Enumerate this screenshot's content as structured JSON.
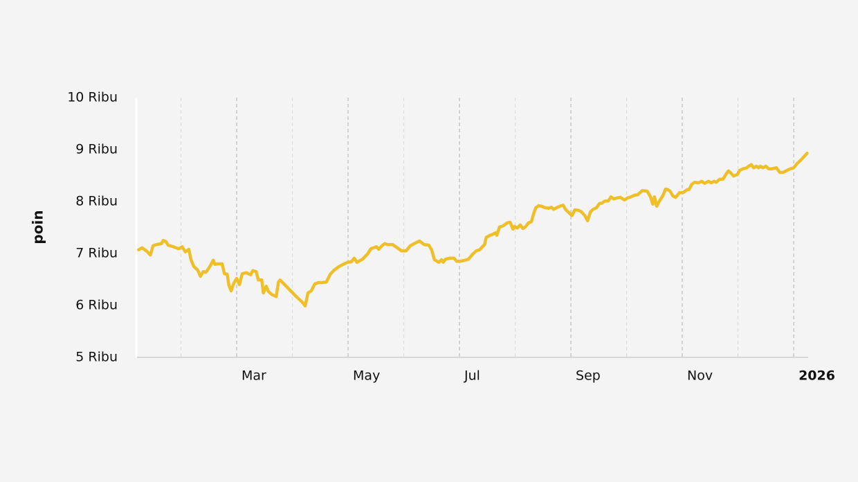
{
  "chart_data": {
    "type": "line",
    "y_label": "poin",
    "color": "#efbf2a",
    "x": [
      0.24,
      0.3,
      0.39,
      0.45,
      0.5,
      0.56,
      0.65,
      0.68,
      0.73,
      0.77,
      0.86,
      0.96,
      1.02,
      1.08,
      1.14,
      1.18,
      1.23,
      1.3,
      1.35,
      1.4,
      1.45,
      1.52,
      1.58,
      1.61,
      1.66,
      1.74,
      1.78,
      1.83,
      1.86,
      1.9,
      1.95,
      2.0,
      2.05,
      2.1,
      2.17,
      2.25,
      2.29,
      2.35,
      2.39,
      2.45,
      2.48,
      2.53,
      2.57,
      2.63,
      2.71,
      2.75,
      2.78,
      2.87,
      2.97,
      3.07,
      3.17,
      3.23,
      3.28,
      3.34,
      3.4,
      3.47,
      3.53,
      3.61,
      3.68,
      3.75,
      3.84,
      3.93,
      3.99,
      4.06,
      4.11,
      4.16,
      4.26,
      4.35,
      4.41,
      4.51,
      4.55,
      4.61,
      4.66,
      4.71,
      4.8,
      4.87,
      4.96,
      5.04,
      5.12,
      5.19,
      5.28,
      5.37,
      5.45,
      5.5,
      5.55,
      5.63,
      5.68,
      5.71,
      5.75,
      5.83,
      5.9,
      5.95,
      6.01,
      6.1,
      6.16,
      6.24,
      6.3,
      6.36,
      6.45,
      6.48,
      6.55,
      6.6,
      6.65,
      6.67,
      6.72,
      6.78,
      6.86,
      6.91,
      6.96,
      6.99,
      7.04,
      7.09,
      7.14,
      7.19,
      7.24,
      7.29,
      7.33,
      7.37,
      7.42,
      7.47,
      7.54,
      7.6,
      7.65,
      7.69,
      7.76,
      7.83,
      7.86,
      7.91,
      7.98,
      8.02,
      8.07,
      8.14,
      8.19,
      8.25,
      8.3,
      8.35,
      8.4,
      8.46,
      8.51,
      8.56,
      8.61,
      8.67,
      8.72,
      8.77,
      8.83,
      8.89,
      8.96,
      9.02,
      9.08,
      9.14,
      9.2,
      9.28,
      9.37,
      9.43,
      9.47,
      9.5,
      9.54,
      9.59,
      9.65,
      9.7,
      9.74,
      9.78,
      9.83,
      9.88,
      9.95,
      10.01,
      10.09,
      10.12,
      10.17,
      10.22,
      10.29,
      10.35,
      10.4,
      10.47,
      10.52,
      10.57,
      10.61,
      10.67,
      10.73,
      10.8,
      10.83,
      10.87,
      10.92,
      10.99,
      11.03,
      11.09,
      11.16,
      11.19,
      11.24,
      11.28,
      11.33,
      11.37,
      11.4,
      11.45,
      11.5,
      11.55,
      11.61,
      11.69,
      11.75,
      11.81,
      11.88,
      11.94,
      12.0,
      12.06,
      12.12,
      12.19,
      12.24
    ],
    "values": [
      7070,
      7110,
      7040,
      6970,
      7150,
      7170,
      7190,
      7250,
      7230,
      7160,
      7130,
      7090,
      7130,
      7030,
      7080,
      6880,
      6750,
      6680,
      6560,
      6650,
      6640,
      6750,
      6870,
      6790,
      6800,
      6800,
      6610,
      6600,
      6390,
      6280,
      6430,
      6520,
      6400,
      6610,
      6630,
      6590,
      6670,
      6650,
      6490,
      6490,
      6240,
      6370,
      6270,
      6210,
      6170,
      6450,
      6490,
      6390,
      6280,
      6170,
      6070,
      5990,
      6240,
      6280,
      6410,
      6440,
      6440,
      6450,
      6600,
      6680,
      6750,
      6800,
      6830,
      6840,
      6910,
      6830,
      6890,
      6990,
      7090,
      7130,
      7080,
      7150,
      7190,
      7170,
      7170,
      7120,
      7050,
      7050,
      7150,
      7190,
      7240,
      7170,
      7160,
      7070,
      6880,
      6830,
      6880,
      6830,
      6890,
      6910,
      6910,
      6850,
      6850,
      6870,
      6890,
      6990,
      7050,
      7070,
      7170,
      7310,
      7350,
      7370,
      7400,
      7350,
      7510,
      7530,
      7590,
      7600,
      7470,
      7520,
      7490,
      7550,
      7480,
      7520,
      7590,
      7610,
      7760,
      7880,
      7920,
      7910,
      7880,
      7870,
      7890,
      7850,
      7890,
      7920,
      7930,
      7840,
      7770,
      7730,
      7840,
      7830,
      7800,
      7730,
      7630,
      7800,
      7850,
      7880,
      7960,
      7970,
      8010,
      8010,
      8090,
      8050,
      8070,
      8080,
      8030,
      8070,
      8090,
      8120,
      8130,
      8210,
      8200,
      8090,
      7950,
      8090,
      7910,
      8010,
      8110,
      8240,
      8230,
      8200,
      8110,
      8080,
      8170,
      8170,
      8230,
      8230,
      8330,
      8370,
      8360,
      8390,
      8350,
      8390,
      8360,
      8390,
      8370,
      8430,
      8430,
      8550,
      8590,
      8550,
      8490,
      8520,
      8600,
      8630,
      8650,
      8680,
      8710,
      8650,
      8680,
      8650,
      8680,
      8650,
      8680,
      8630,
      8630,
      8650,
      8560,
      8560,
      8600,
      8630,
      8650,
      8730,
      8790,
      8870,
      8930
    ],
    "xlim": [
      0.211,
      12.26
    ],
    "xticks": [
      {
        "value": 2,
        "label": "Mar"
      },
      {
        "value": 4,
        "label": "May"
      },
      {
        "value": 6,
        "label": "Jul"
      },
      {
        "value": 8,
        "label": "Sep"
      },
      {
        "value": 10,
        "label": "Nov"
      },
      {
        "value": 12,
        "label": "2026"
      }
    ],
    "xminorticks": [
      1,
      3,
      5,
      7,
      9,
      11
    ],
    "ylim": [
      5000,
      10000
    ],
    "yticks": [
      {
        "value": 5000,
        "label": "5 Ribu"
      },
      {
        "value": 6000,
        "label": "6 Ribu"
      },
      {
        "value": 7000,
        "label": "7 Ribu"
      },
      {
        "value": 8000,
        "label": "8 Ribu"
      },
      {
        "value": 9000,
        "label": "9 Ribu"
      },
      {
        "value": 10000,
        "label": "10 Ribu"
      }
    ],
    "grid": true
  }
}
